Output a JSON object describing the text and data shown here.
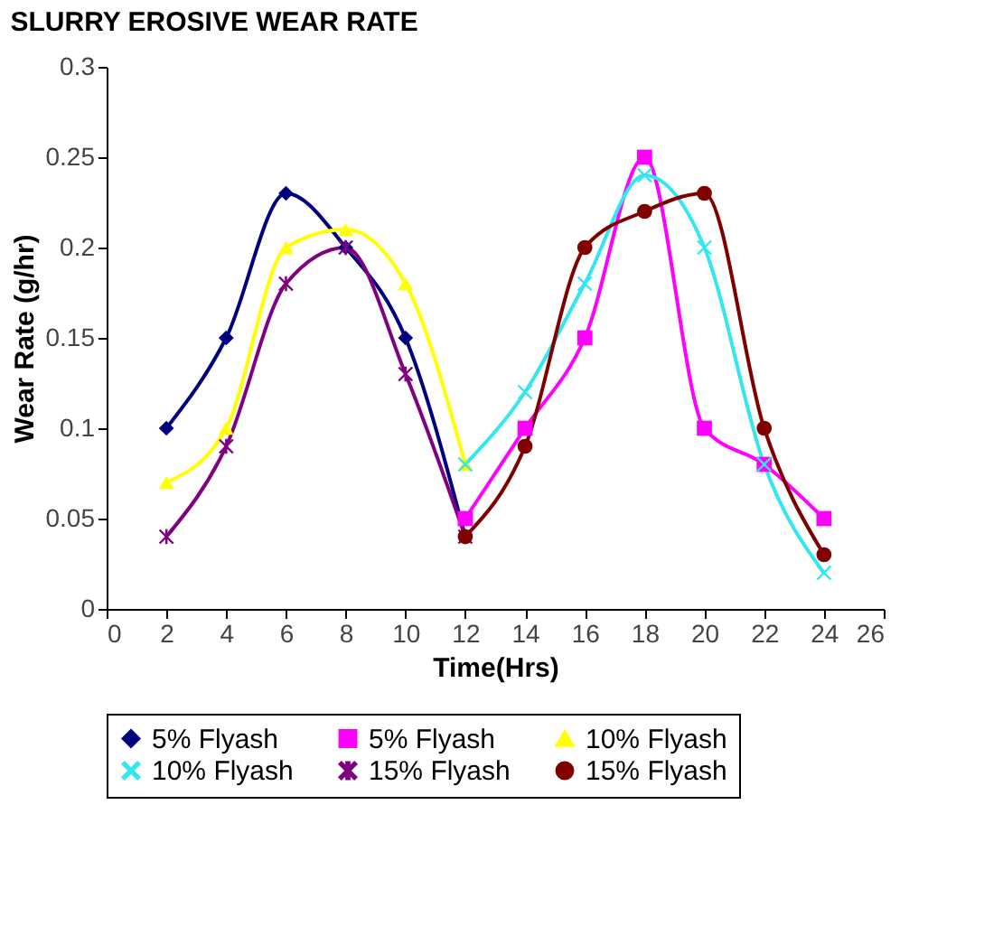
{
  "chart_data": {
    "type": "line",
    "title": "SLURRY EROSIVE WEAR RATE",
    "xlabel": "Time(Hrs)",
    "ylabel": "Wear Rate (g/hr)",
    "xlim": [
      0,
      26
    ],
    "xticks": [
      0,
      2,
      4,
      6,
      8,
      10,
      12,
      14,
      16,
      18,
      20,
      22,
      24,
      26
    ],
    "ylim": [
      0,
      0.3
    ],
    "yticks": [
      0,
      0.05,
      0.1,
      0.15,
      0.2,
      0.25,
      0.3
    ],
    "grid": false,
    "legend": "bottom",
    "line_style": "solid",
    "series": [
      {
        "name": "5% Flyash",
        "color": "#000080",
        "marker": "diamond",
        "x": [
          2,
          4,
          6,
          8,
          10,
          12
        ],
        "values": [
          0.1,
          0.15,
          0.23,
          0.2,
          0.15,
          0.04
        ]
      },
      {
        "name": "5% Flyash",
        "color": "#ff00ff",
        "marker": "square",
        "x": [
          12,
          14,
          16,
          18,
          20,
          22,
          24
        ],
        "values": [
          0.05,
          0.1,
          0.15,
          0.25,
          0.1,
          0.08,
          0.05
        ]
      },
      {
        "name": "10% Flyash",
        "color": "#ffff00",
        "marker": "triangle",
        "x": [
          2,
          4,
          6,
          8,
          10,
          12
        ],
        "values": [
          0.07,
          0.1,
          0.2,
          0.21,
          0.18,
          0.08
        ]
      },
      {
        "name": "10% Flyash",
        "color": "#33e6f0",
        "marker": "cross",
        "x": [
          12,
          14,
          16,
          18,
          20,
          22,
          24
        ],
        "values": [
          0.08,
          0.12,
          0.18,
          0.24,
          0.2,
          0.08,
          0.02
        ]
      },
      {
        "name": "15% Flyash",
        "color": "#800080",
        "marker": "star",
        "x": [
          2,
          4,
          6,
          8,
          10,
          12
        ],
        "values": [
          0.04,
          0.09,
          0.18,
          0.2,
          0.13,
          0.04
        ]
      },
      {
        "name": "15% Flyash",
        "color": "#800000",
        "marker": "circle",
        "x": [
          12,
          14,
          16,
          18,
          20,
          22,
          24
        ],
        "values": [
          0.04,
          0.09,
          0.2,
          0.22,
          0.23,
          0.1,
          0.03
        ]
      }
    ]
  }
}
